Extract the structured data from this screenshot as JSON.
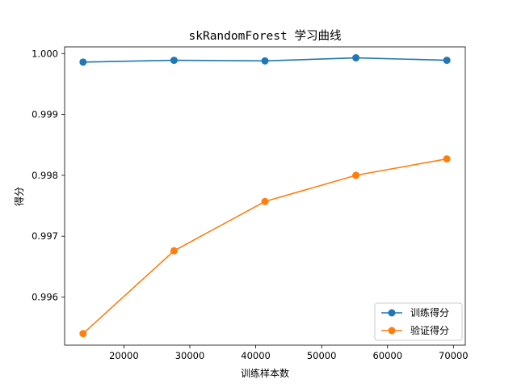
{
  "chart_data": {
    "type": "line",
    "title": "skRandomForest 学习曲线",
    "xlabel": "训练样本数",
    "ylabel": "得分",
    "x": [
      13800,
      27600,
      41400,
      55200,
      69000
    ],
    "xlim": [
      11000,
      71800
    ],
    "ylim": [
      0.99521,
      1.00011
    ],
    "xticks": [
      20000,
      30000,
      40000,
      50000,
      60000,
      70000
    ],
    "yticks": [
      0.996,
      0.997,
      0.998,
      0.999,
      1.0
    ],
    "ytick_labels": [
      "0.996",
      "0.997",
      "0.998",
      "0.999",
      "1.000"
    ],
    "grid": false,
    "legend_position": "lower-right",
    "series": [
      {
        "name": "训练得分",
        "color": "#1f77b4",
        "marker": "circle",
        "values": [
          0.99986,
          0.99989,
          0.99988,
          0.99993,
          0.99989
        ]
      },
      {
        "name": "验证得分",
        "color": "#ff7f0e",
        "marker": "circle",
        "values": [
          0.9954,
          0.99676,
          0.99757,
          0.998,
          0.99827
        ]
      }
    ]
  }
}
